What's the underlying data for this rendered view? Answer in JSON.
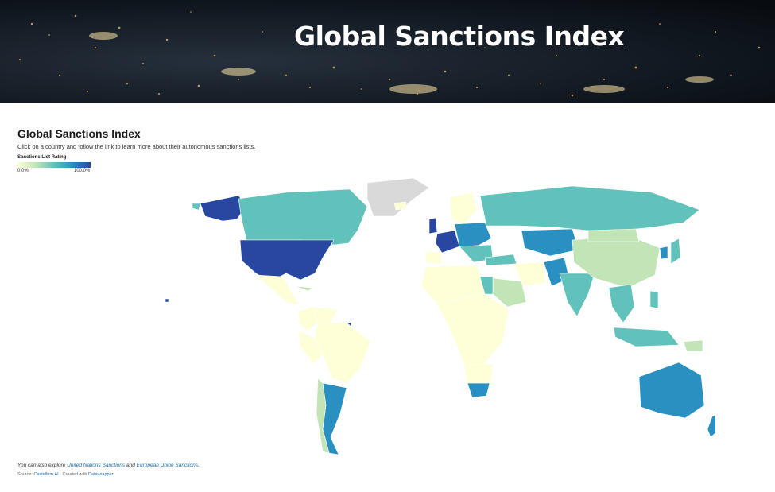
{
  "hero": {
    "title": "Global Sanctions Index"
  },
  "visualization": {
    "title": "Global Sanctions Index",
    "description": "Click on a country and follow the link to learn more about their autonomous sanctions lists.",
    "legend": {
      "title": "Sanctions List Rating",
      "min_label": "0.0%",
      "max_label": "100.0%"
    },
    "notes": {
      "prefix": "You can also explore ",
      "link1": "United Nations Sanctions",
      "middle": " and ",
      "link2": "European Union Sanctions",
      "suffix": "."
    },
    "source": {
      "prefix": "Source: ",
      "source_link": "Castellum.AI",
      "middle": " · Created with ",
      "tool_link": "Datawrapper"
    }
  },
  "colors": {
    "scale": [
      "#feffd6",
      "#c1e5b7",
      "#61c2bb",
      "#2a8fc1",
      "#2847a0"
    ],
    "no_data": "#d9d9d9",
    "link": "#1b6fae"
  }
}
